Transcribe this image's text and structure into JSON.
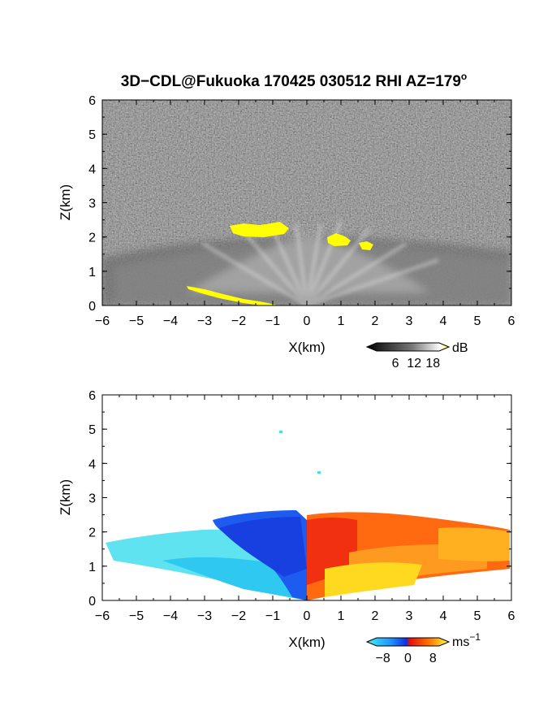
{
  "title": "3D−CDL@Fukuoka 170425 030512 RHI AZ=179",
  "title_sup": "o",
  "chart_data": [
    {
      "type": "heatmap",
      "quantity": "reflectivity",
      "xlabel": "X(km)",
      "ylabel": "Z(km)",
      "xlim": [
        -6,
        6
      ],
      "ylim": [
        0,
        6
      ],
      "xticks": [
        "−6",
        "−5",
        "−4",
        "−3",
        "−2",
        "−1",
        "0",
        "1",
        "2",
        "3",
        "4",
        "5",
        "6"
      ],
      "yticks": [
        "0",
        "1",
        "2",
        "3",
        "4",
        "5",
        "6"
      ],
      "colorbar": {
        "unit": "dB",
        "ticks": [
          "6",
          "12",
          "18"
        ],
        "range": [
          0,
          20
        ],
        "colormap": "grayscale with yellow top"
      },
      "features": [
        {
          "label": "echo layer",
          "x_range": [
            -6,
            6
          ],
          "z_range": [
            0,
            2.2
          ],
          "value_db": 10
        },
        {
          "label": "high reflectivity patch",
          "x_range": [
            -2.2,
            -0.5
          ],
          "z_range": [
            2.05,
            2.4
          ],
          "value_db": 20
        },
        {
          "label": "high reflectivity patch",
          "x_range": [
            0.6,
            1.3
          ],
          "z_range": [
            1.8,
            2.1
          ],
          "value_db": 20
        },
        {
          "label": "high reflectivity patch",
          "x_range": [
            1.55,
            1.95
          ],
          "z_range": [
            1.65,
            1.85
          ],
          "value_db": 20
        },
        {
          "label": "ground clutter",
          "x_range": [
            -3.5,
            -0.7
          ],
          "z_range": [
            0,
            0.55
          ],
          "value_db": 20
        }
      ]
    },
    {
      "type": "heatmap",
      "quantity": "radial velocity",
      "xlabel": "X(km)",
      "ylabel": "Z(km)",
      "xlim": [
        -6,
        6
      ],
      "ylim": [
        0,
        6
      ],
      "xticks": [
        "−6",
        "−5",
        "−4",
        "−3",
        "−2",
        "−1",
        "0",
        "1",
        "2",
        "3",
        "4",
        "5",
        "6"
      ],
      "yticks": [
        "0",
        "1",
        "2",
        "3",
        "4",
        "5",
        "6"
      ],
      "colorbar": {
        "unit": "ms",
        "unit_sup": "−1",
        "ticks": [
          "−8",
          "0",
          "8"
        ],
        "range": [
          -10,
          10
        ],
        "colormap": "cyan-blue-red-yellow"
      },
      "features": [
        {
          "label": "approaching flow",
          "x_range": [
            -6,
            0
          ],
          "z_range": [
            0,
            2.5
          ],
          "value_ms": -5
        },
        {
          "label": "receding flow",
          "x_range": [
            0,
            6
          ],
          "z_range": [
            0,
            2.6
          ],
          "value_ms": 5
        },
        {
          "label": "isolated echo",
          "x": -0.75,
          "z": 4.9,
          "value_ms": -6
        },
        {
          "label": "isolated echo",
          "x": 0.4,
          "z": 3.7,
          "value_ms": -6
        }
      ]
    }
  ]
}
